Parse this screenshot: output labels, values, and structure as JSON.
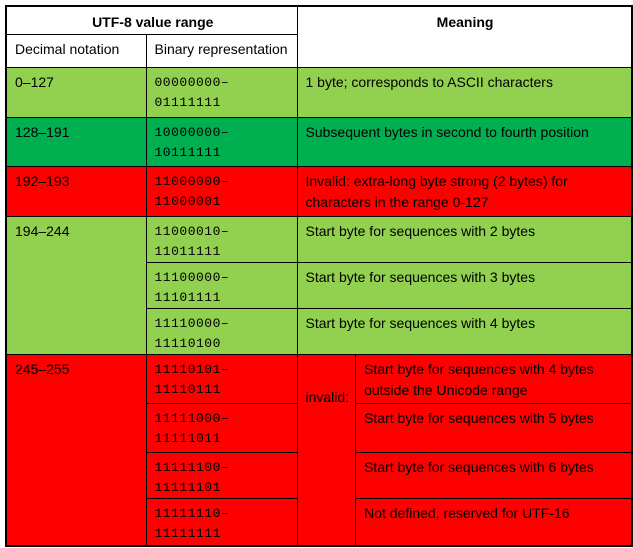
{
  "palette": {
    "light_green": "#92D050",
    "dark_green": "#00B050",
    "red": "#FF0000",
    "white": "#FFFFFF",
    "border_black": "#000000"
  },
  "header": {
    "utf8_value_range": "UTF-8 value range",
    "meaning": "Meaning",
    "decimal_notation": "Decimal notation",
    "binary_representation": "Binary representation"
  },
  "rows": {
    "r0_127": {
      "decimal": "0–127",
      "binary": "00000000–\n01111111",
      "meaning": "1 byte; corresponds to ASCII characters"
    },
    "r128_191": {
      "decimal": "128–191",
      "binary": "10000000–\n10111111",
      "meaning": "Subsequent bytes in second to fourth position"
    },
    "r192_193": {
      "decimal": "192–193",
      "binary": "11000000–\n11000001",
      "meaning": "Invalid: extra-long byte strong (2 bytes) for characters in the range 0-127"
    },
    "r194_244": {
      "decimal": "194–244",
      "entries": [
        {
          "binary": "11000010–\n11011111",
          "meaning": "Start byte for sequences with 2 bytes"
        },
        {
          "binary": "11100000–\n11101111",
          "meaning": "Start byte for sequences with 3 bytes"
        },
        {
          "binary": "11110000–\n11110100",
          "meaning": "Start byte for sequences with 4 bytes"
        }
      ]
    },
    "r245_255": {
      "decimal": "245–255",
      "invalid_label": "invalid:",
      "entries": [
        {
          "binary": "11110101–\n11110111",
          "meaning": "Start byte for sequences with 4 bytes outside the Unicode range"
        },
        {
          "binary": "11111000–\n11111011",
          "meaning": "Start byte for sequences with 5 bytes"
        },
        {
          "binary": "11111100–\n11111101",
          "meaning": "Start byte for sequences with 6 bytes"
        },
        {
          "binary": "11111110–\n11111111",
          "meaning": "Not defined, reserved for UTF-16"
        }
      ]
    }
  }
}
